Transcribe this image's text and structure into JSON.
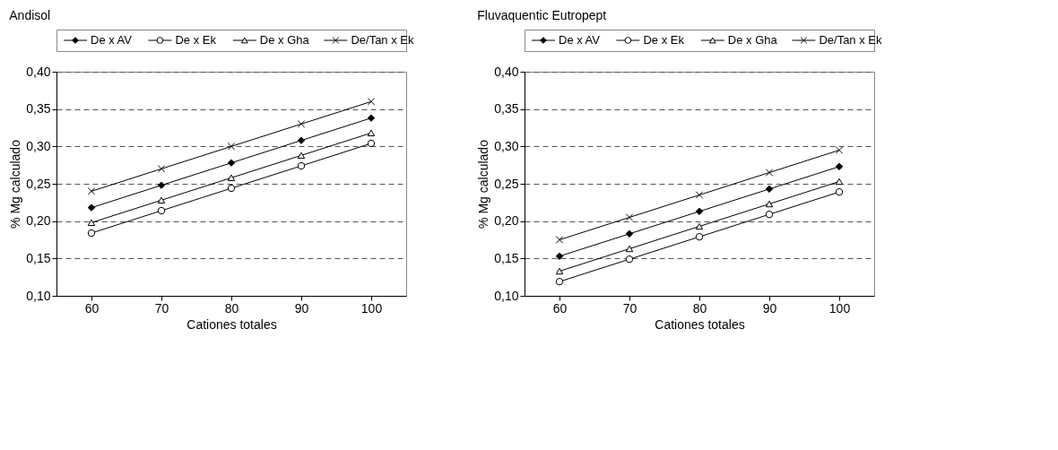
{
  "chart_data": [
    {
      "type": "line",
      "title": "Andisol",
      "xlabel": "Cationes totales",
      "ylabel": "% Mg calculado",
      "categories": [
        "60",
        "70",
        "80",
        "90",
        "100"
      ],
      "ylim": [
        0.1,
        0.4
      ],
      "yticks": [
        {
          "value": 0.1,
          "label": "0,10"
        },
        {
          "value": 0.15,
          "label": "0,15"
        },
        {
          "value": 0.2,
          "label": "0,20"
        },
        {
          "value": 0.25,
          "label": "0,25"
        },
        {
          "value": 0.3,
          "label": "0,30"
        },
        {
          "value": 0.35,
          "label": "0,35"
        },
        {
          "value": 0.4,
          "label": "0,40"
        }
      ],
      "grid": "y",
      "legend": "top",
      "line_style": "solid",
      "series": [
        {
          "name": "De x AV",
          "color": "#000000",
          "marker": "diamond",
          "values": [
            0.218,
            0.248,
            0.278,
            0.308,
            0.338
          ]
        },
        {
          "name": "De x Ek",
          "color": "#000000",
          "marker": "circle",
          "values": [
            0.184,
            0.214,
            0.244,
            0.274,
            0.304
          ]
        },
        {
          "name": "De x Gha",
          "color": "#000000",
          "marker": "triangle",
          "values": [
            0.198,
            0.228,
            0.258,
            0.288,
            0.318
          ]
        },
        {
          "name": "De/Tan x Ek",
          "color": "#000000",
          "marker": "cross",
          "values": [
            0.24,
            0.27,
            0.3,
            0.33,
            0.36
          ]
        }
      ]
    },
    {
      "type": "line",
      "title": "Fluvaquentic Eutropept",
      "xlabel": "Cationes totales",
      "ylabel": "% Mg calculado",
      "categories": [
        "60",
        "70",
        "80",
        "90",
        "100"
      ],
      "ylim": [
        0.1,
        0.4
      ],
      "yticks": [
        {
          "value": 0.1,
          "label": "0,10"
        },
        {
          "value": 0.15,
          "label": "0,15"
        },
        {
          "value": 0.2,
          "label": "0,20"
        },
        {
          "value": 0.25,
          "label": "0,25"
        },
        {
          "value": 0.3,
          "label": "0,30"
        },
        {
          "value": 0.35,
          "label": "0,35"
        },
        {
          "value": 0.4,
          "label": "0,40"
        }
      ],
      "grid": "y",
      "legend": "top",
      "line_style": "solid",
      "series": [
        {
          "name": "De x AV",
          "color": "#000000",
          "marker": "diamond",
          "values": [
            0.153,
            0.183,
            0.213,
            0.243,
            0.273
          ]
        },
        {
          "name": "De x Ek",
          "color": "#000000",
          "marker": "circle",
          "values": [
            0.119,
            0.149,
            0.179,
            0.209,
            0.239
          ]
        },
        {
          "name": "De x Gha",
          "color": "#000000",
          "marker": "triangle",
          "values": [
            0.133,
            0.163,
            0.193,
            0.223,
            0.253
          ]
        },
        {
          "name": "De/Tan x Ek",
          "color": "#000000",
          "marker": "cross",
          "values": [
            0.175,
            0.205,
            0.235,
            0.265,
            0.295
          ]
        }
      ]
    }
  ]
}
